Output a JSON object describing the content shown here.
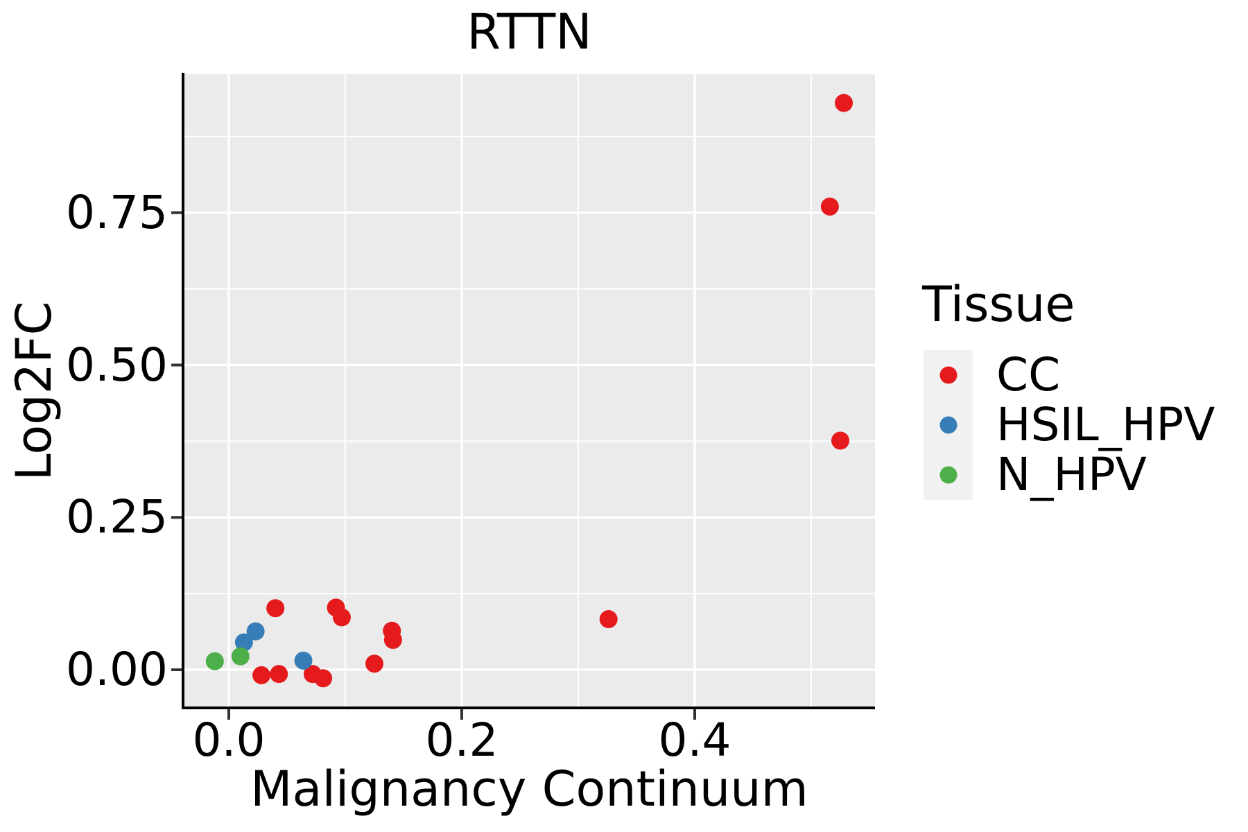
{
  "chart_data": {
    "type": "scatter",
    "title": "RTTN",
    "xlabel": "Malignancy Continuum",
    "ylabel": "Log2FC",
    "legend_title": "Tissue",
    "legend_position": "right",
    "panel_bg": "#EBEBEB",
    "grid_color": "#FFFFFF",
    "axis_line_color": "#000000",
    "tick_color": "#333333",
    "legend_key_bg": "#F1F1F1",
    "grid": "major+minor",
    "xlim": [
      -0.039,
      0.555
    ],
    "ylim": [
      -0.063,
      0.977
    ],
    "x_tick_values": [
      0.0,
      0.2,
      0.4
    ],
    "x_tick_labels": [
      "0.0",
      "0.2",
      "0.4"
    ],
    "y_tick_values": [
      0.0,
      0.25,
      0.5,
      0.75
    ],
    "y_tick_labels": [
      "0.00",
      "0.25",
      "0.50",
      "0.75"
    ],
    "x_minor_ticks": [
      0.1,
      0.3,
      0.5
    ],
    "y_minor_ticks": [
      0.125,
      0.375,
      0.625,
      0.875
    ],
    "series": [
      {
        "name": "CC",
        "color": "#E41A1C",
        "points": [
          [
            0.04,
            0.101
          ],
          [
            0.092,
            0.102
          ],
          [
            0.097,
            0.086
          ],
          [
            0.028,
            -0.009
          ],
          [
            0.043,
            -0.007
          ],
          [
            0.072,
            -0.007
          ],
          [
            0.081,
            -0.014
          ],
          [
            0.125,
            0.01
          ],
          [
            0.14,
            0.064
          ],
          [
            0.141,
            0.049
          ],
          [
            0.326,
            0.083
          ],
          [
            0.516,
            0.76
          ],
          [
            0.525,
            0.376
          ],
          [
            0.528,
            0.93
          ]
        ]
      },
      {
        "name": "HSIL_HPV",
        "color": "#377EB8",
        "points": [
          [
            0.013,
            0.045
          ],
          [
            0.023,
            0.063
          ],
          [
            0.064,
            0.015
          ]
        ]
      },
      {
        "name": "N_HPV",
        "color": "#4DAF4A",
        "points": [
          [
            -0.012,
            0.014
          ],
          [
            0.01,
            0.022
          ]
        ]
      }
    ]
  }
}
